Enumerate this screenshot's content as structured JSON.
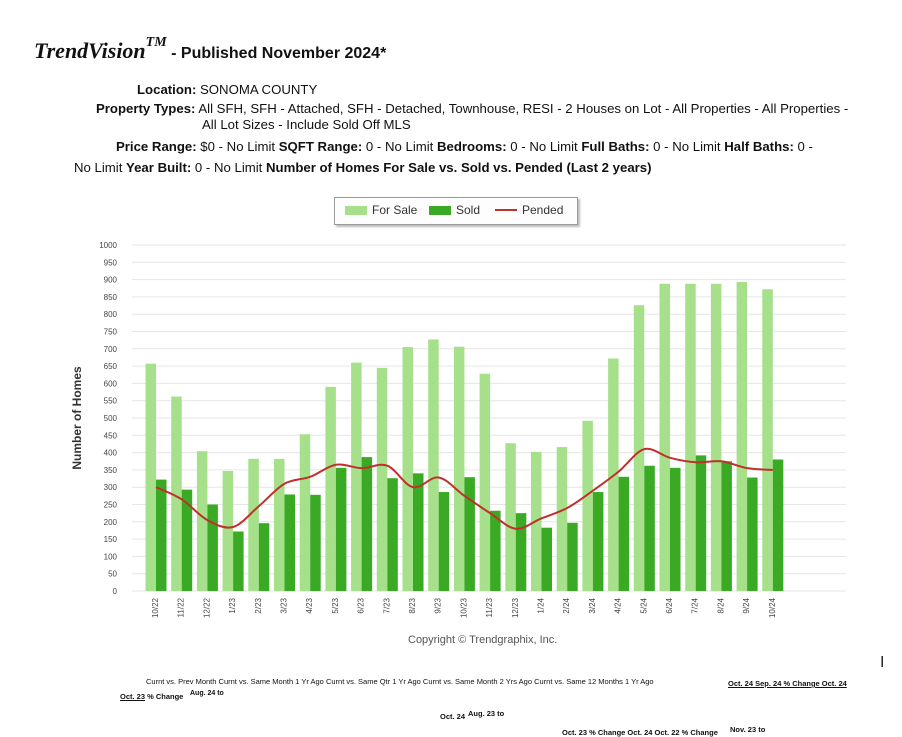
{
  "header": {
    "brand": "TrendVision",
    "tm": "TM",
    "published": " - Published November 2024*"
  },
  "filters": {
    "location_label": "Location:",
    "location_value": " SONOMA COUNTY",
    "property_label": "Property Types:",
    "property_value_1": " All SFH, SFH - Attached, SFH - Detached, Townhouse, RESI - 2 Houses on Lot - All Properties - All Properties -",
    "property_value_2": "All Lot Sizes - Include Sold Off MLS",
    "price_label": "Price Range:",
    "price_value": " $0 - No Limit ",
    "sqft_label": "SQFT Range:",
    "sqft_value": " 0 - No Limit ",
    "bedrooms_label": "Bedrooms:",
    "bedrooms_value": " 0 - No Limit ",
    "fullbaths_label": "Full Baths:",
    "fullbaths_value": " 0 - No Limit ",
    "halfbaths_label": "Half Baths:",
    "halfbaths_value": " 0 -",
    "line3_start": "No Limit ",
    "yearbuilt_label": "Year Built:",
    "yearbuilt_value": " 0 - No Limit ",
    "chart_title": "Number of Homes For Sale vs. Sold vs. Pended (Last 2 years)"
  },
  "chart_data": {
    "type": "bar",
    "ylabel": "Number of Homes",
    "ylim": [
      0,
      1000
    ],
    "yticks": [
      0,
      50,
      100,
      150,
      200,
      250,
      300,
      350,
      400,
      450,
      500,
      550,
      600,
      650,
      700,
      750,
      800,
      850,
      900,
      950,
      1000
    ],
    "grid": true,
    "legend_position": "top-center",
    "categories": [
      "10/22",
      "11/22",
      "12/22",
      "1/23",
      "2/23",
      "3/23",
      "4/23",
      "5/23",
      "6/23",
      "7/23",
      "8/23",
      "9/23",
      "10/23",
      "11/23",
      "12/23",
      "1/24",
      "2/24",
      "3/24",
      "4/24",
      "5/24",
      "6/24",
      "7/24",
      "8/24",
      "9/24",
      "10/24"
    ],
    "series": [
      {
        "name": "For Sale",
        "type": "bar",
        "color": "#a6e08a",
        "values": [
          657,
          562,
          404,
          347,
          382,
          382,
          453,
          590,
          660,
          645,
          705,
          727,
          706,
          628,
          427,
          402,
          416,
          492,
          672,
          826,
          888,
          888,
          888,
          893,
          872
        ]
      },
      {
        "name": "Sold",
        "type": "bar",
        "color": "#3aaa24",
        "values": [
          322,
          293,
          250,
          172,
          196,
          279,
          278,
          356,
          387,
          326,
          340,
          286,
          329,
          232,
          225,
          183,
          197,
          286,
          330,
          362,
          356,
          392,
          375,
          328,
          380
        ]
      },
      {
        "name": "Pended",
        "type": "line",
        "color": "#c0302c",
        "values": [
          300,
          265,
          205,
          185,
          245,
          310,
          330,
          365,
          355,
          362,
          300,
          328,
          275,
          225,
          180,
          210,
          240,
          290,
          345,
          410,
          385,
          372,
          375,
          355,
          350
        ]
      }
    ],
    "copyright": "Copyright © Trendgraphix, Inc."
  },
  "table_header": {
    "row1_underlined": "Curnt vs. Prev Month Curnt vs. Same Month 1 Yr Ago Curnt vs. Same Qtr 1 Yr Ago Curnt vs. Same Month 2 Yrs Ago",
    "row1_plain": " Curnt vs. Same 12 Months 1 Yr Ago",
    "row1_right": "Oct. 24 Sep. 24 % Change Oct. 24",
    "row2_underlined": "Oct. 23",
    "row2_plain": " % Change",
    "row2_small": "Aug. 24 to",
    "row3a": "Oct. 24",
    "row3b": "Aug. 23 to",
    "row4a": "Oct. 23 % Change Oct. 24 Oct. 22 % Change",
    "row4b": "Nov. 23 to"
  },
  "misc": {
    "cursor": "I"
  }
}
